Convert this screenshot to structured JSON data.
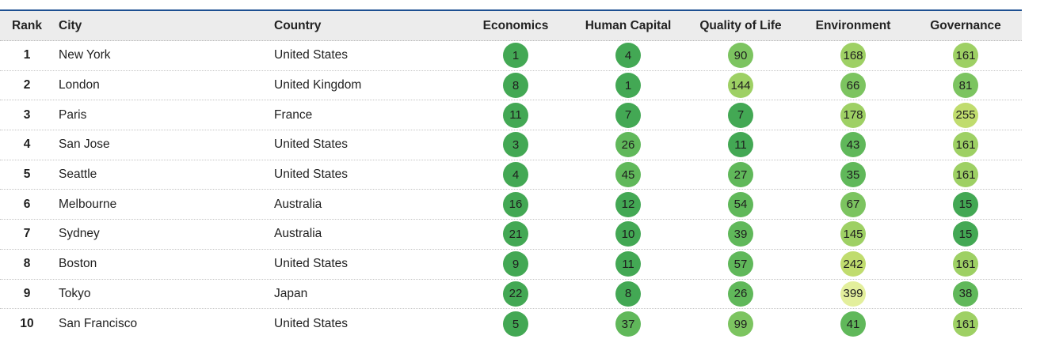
{
  "headers": {
    "rank": "Rank",
    "city": "City",
    "country": "Country",
    "economics": "Economics",
    "human_capital": "Human Capital",
    "quality_of_life": "Quality of Life",
    "environment": "Environment",
    "governance": "Governance"
  },
  "rows": [
    {
      "rank": "1",
      "city": "New York",
      "country": "United States",
      "economics": "1",
      "human_capital": "4",
      "quality_of_life": "90",
      "environment": "168",
      "governance": "161"
    },
    {
      "rank": "2",
      "city": "London",
      "country": "United Kingdom",
      "economics": "8",
      "human_capital": "1",
      "quality_of_life": "144",
      "environment": "66",
      "governance": "81"
    },
    {
      "rank": "3",
      "city": "Paris",
      "country": "France",
      "economics": "11",
      "human_capital": "7",
      "quality_of_life": "7",
      "environment": "178",
      "governance": "255"
    },
    {
      "rank": "4",
      "city": "San Jose",
      "country": "United States",
      "economics": "3",
      "human_capital": "26",
      "quality_of_life": "11",
      "environment": "43",
      "governance": "161"
    },
    {
      "rank": "5",
      "city": "Seattle",
      "country": "United States",
      "economics": "4",
      "human_capital": "45",
      "quality_of_life": "27",
      "environment": "35",
      "governance": "161"
    },
    {
      "rank": "6",
      "city": "Melbourne",
      "country": "Australia",
      "economics": "16",
      "human_capital": "12",
      "quality_of_life": "54",
      "environment": "67",
      "governance": "15"
    },
    {
      "rank": "7",
      "city": "Sydney",
      "country": "Australia",
      "economics": "21",
      "human_capital": "10",
      "quality_of_life": "39",
      "environment": "145",
      "governance": "15"
    },
    {
      "rank": "8",
      "city": "Boston",
      "country": "United States",
      "economics": "9",
      "human_capital": "11",
      "quality_of_life": "57",
      "environment": "242",
      "governance": "161"
    },
    {
      "rank": "9",
      "city": "Tokyo",
      "country": "Japan",
      "economics": "22",
      "human_capital": "8",
      "quality_of_life": "26",
      "environment": "399",
      "governance": "38"
    },
    {
      "rank": "10",
      "city": "San Francisco",
      "country": "United States",
      "economics": "5",
      "human_capital": "37",
      "quality_of_life": "99",
      "environment": "41",
      "governance": "161"
    }
  ],
  "badge_colors": {
    "tier1": "#43a854",
    "tier2": "#60b85a",
    "tier3": "#7cc460",
    "tier4": "#9ed064",
    "tier5": "#c0dc6e",
    "tier6": "#e3ef9c"
  },
  "header_accent": "#1d4f91"
}
